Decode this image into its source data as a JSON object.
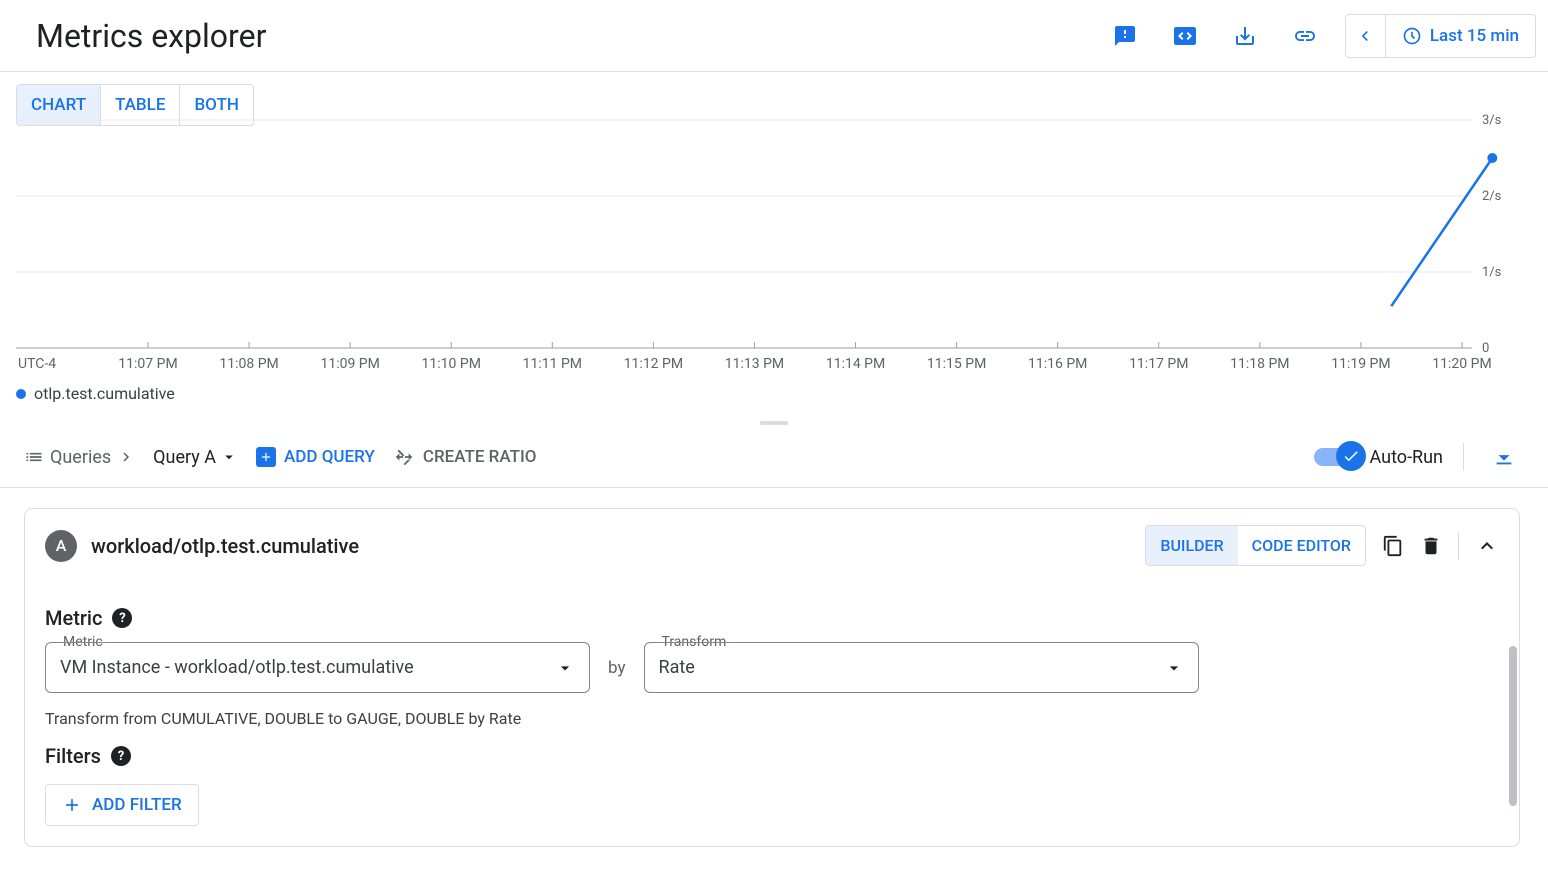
{
  "header": {
    "title": "Metrics explorer",
    "time_range": "Last 15 min"
  },
  "colors": {
    "primary": "#1a73e8",
    "primary_light": "#e8f0fe",
    "grid": "#e8eaed",
    "text_muted": "#5f6368",
    "border": "#dadce0"
  },
  "view_tabs": {
    "chart": "CHART",
    "table": "TABLE",
    "both": "BOTH",
    "active": "chart"
  },
  "chart": {
    "type": "line",
    "timezone": "UTC-4",
    "series_name": "otlp.test.cumulative",
    "series_color": "#1a73e8",
    "x_ticks": [
      "11:07 PM",
      "11:08 PM",
      "11:09 PM",
      "11:10 PM",
      "11:11 PM",
      "11:12 PM",
      "11:13 PM",
      "11:14 PM",
      "11:15 PM",
      "11:16 PM",
      "11:17 PM",
      "11:18 PM",
      "11:19 PM",
      "11:20 PM"
    ],
    "y_ticks": [
      "3/s",
      "2/s",
      "1/s",
      "0"
    ],
    "y_values": [
      3,
      2,
      1,
      0
    ],
    "ylim": [
      0,
      3
    ],
    "xlim_index": [
      0,
      14
    ],
    "points": [
      {
        "x_index": 12.3,
        "y": 0.55
      },
      {
        "x_index": 13.3,
        "y": 2.5
      }
    ],
    "dot_on_last": true,
    "line_width": 2.5,
    "background_color": "#ffffff",
    "grid_color": "#e8eaed"
  },
  "query_bar": {
    "queries_label": "Queries",
    "current_query": "Query A",
    "add_query": "ADD QUERY",
    "create_ratio": "CREATE RATIO",
    "auto_run": "Auto-Run",
    "auto_run_on": true
  },
  "panel": {
    "badge": "A",
    "title": "workload/otlp.test.cumulative",
    "builder_tab": "BUILDER",
    "code_tab": "CODE EDITOR",
    "metric_section": "Metric",
    "metric_field_label": "Metric",
    "metric_value": "VM Instance - workload/otlp.test.cumulative",
    "by_label": "by",
    "transform_field_label": "Transform",
    "transform_value": "Rate",
    "transform_desc": "Transform from CUMULATIVE, DOUBLE to GAUGE, DOUBLE by Rate",
    "filters_section": "Filters",
    "add_filter": "ADD FILTER"
  }
}
